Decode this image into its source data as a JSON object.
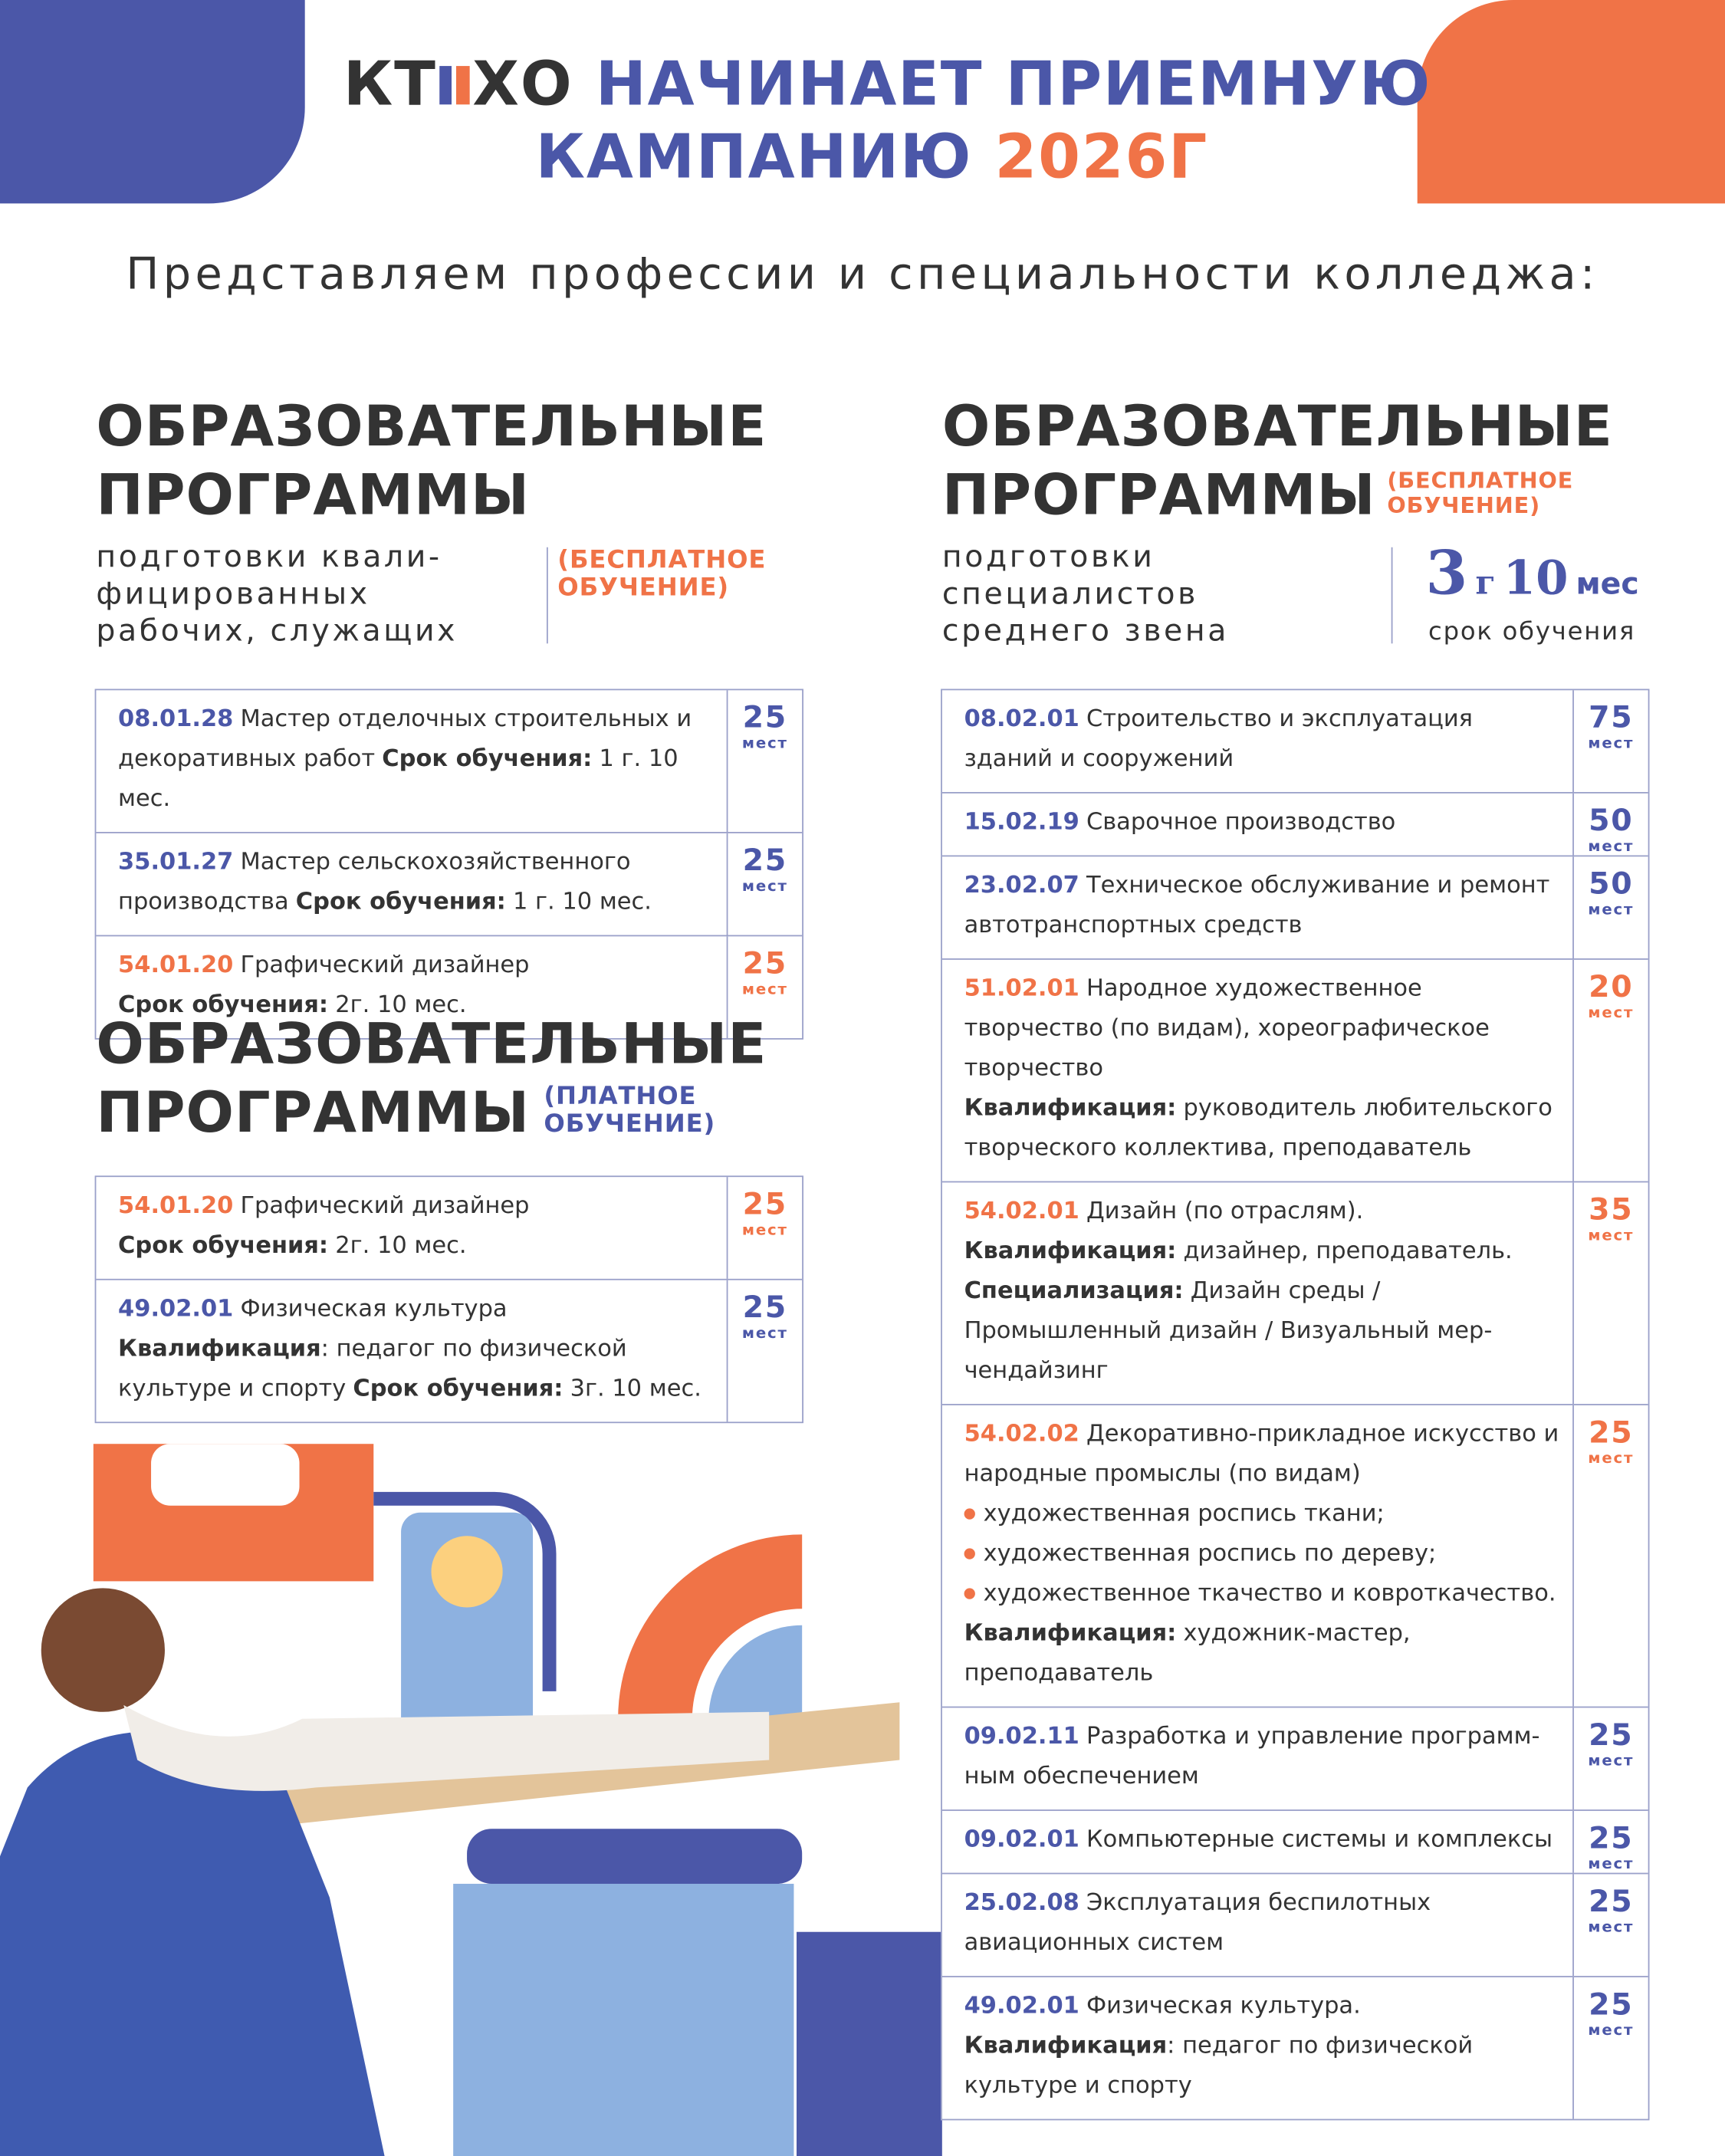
{
  "header": {
    "logo_left": "КТ",
    "logo_right": "ХО",
    "title_line_1": "НАЧИНАЕТ ПРИЕМНУЮ",
    "title_line_2": "КАМПАНИЮ",
    "year": "2026Г"
  },
  "intro": "Представляем профессии и специальности колледжа:",
  "seats_unit": "мест",
  "left_free": {
    "heading": [
      "ОБРАЗОВАТЕЛЬНЫЕ",
      "ПРОГРАММЫ"
    ],
    "subtitle": [
      "подготовки квали-",
      "фицированных",
      "рабочих, служащих"
    ],
    "tag": [
      "(БЕСПЛАТНОЕ",
      "ОБУЧЕНИЕ)"
    ],
    "rows": [
      {
        "code": "08.01.28",
        "color": "#4b57a8",
        "seats": 25,
        "paragraphs": [
          {
            "parts": [
              {
                "text": "Мастер отделочных строительных и декоративных работ",
                "bold": false
              },
              {
                "text": "Срок обучения:",
                "bold": true
              },
              {
                "text": "1 г. 10 мес.",
                "bold": false
              }
            ]
          }
        ]
      },
      {
        "code": "35.01.27",
        "color": "#4b57a8",
        "seats": 25,
        "paragraphs": [
          {
            "parts": [
              {
                "text": "Мастер сельскохозяйственного производства",
                "bold": false
              },
              {
                "text": "Срок обучения:",
                "bold": true
              },
              {
                "text": "1 г. 10 мес.",
                "bold": false
              }
            ]
          }
        ]
      },
      {
        "code": "54.01.20",
        "color": "#f07347",
        "seats": 25,
        "paragraphs": [
          {
            "parts": [
              {
                "text": "Графический дизайнер",
                "bold": false
              }
            ]
          },
          {
            "parts": [
              {
                "text": "Срок обучения:",
                "bold": true
              },
              {
                "text": "2г. 10 мес.",
                "bold": false
              }
            ]
          }
        ]
      }
    ]
  },
  "left_paid": {
    "heading": [
      "ОБРАЗОВАТЕЛЬНЫЕ",
      "ПРОГРАММЫ"
    ],
    "tag": [
      "(ПЛАТНОЕ",
      "ОБУЧЕНИЕ)"
    ],
    "rows": [
      {
        "code": "54.01.20",
        "color": "#f07347",
        "seats": 25,
        "paragraphs": [
          {
            "parts": [
              {
                "text": "Графический дизайнер",
                "bold": false
              }
            ]
          },
          {
            "parts": [
              {
                "text": "Срок обучения:",
                "bold": true
              },
              {
                "text": "2г. 10 мес.",
                "bold": false
              }
            ]
          }
        ]
      },
      {
        "code": "49.02.01",
        "color": "#4b57a8",
        "seats": 25,
        "paragraphs": [
          {
            "parts": [
              {
                "text": "Физическая культура",
                "bold": false
              }
            ]
          },
          {
            "parts": [
              {
                "text": "Квалификация",
                "bold": true
              },
              {
                "text": ": педагог по физической культуре и спорту",
                "bold": false
              },
              {
                "text": "Срок обучения:",
                "bold": true
              },
              {
                "text": "3г. 10 мес.",
                "bold": false
              }
            ]
          }
        ]
      }
    ]
  },
  "right": {
    "heading": [
      "ОБРАЗОВАТЕЛЬНЫЕ",
      "ПРОГРАММЫ"
    ],
    "tag": [
      "(БЕСПЛАТНОЕ",
      "ОБУЧЕНИЕ)"
    ],
    "subtitle": [
      "подготовки",
      "специалистов",
      "среднего звена"
    ],
    "duration": {
      "years": 3,
      "years_unit": "г",
      "months": 10,
      "months_unit": "мес",
      "label": "срок обучения"
    },
    "rows": [
      {
        "code": "08.02.01",
        "color": "#4b57a8",
        "seats": 75,
        "paragraphs": [
          {
            "parts": [
              {
                "text": "Строительство и эксплуатация зданий и сооружений",
                "bold": false
              }
            ]
          }
        ]
      },
      {
        "code": "15.02.19",
        "color": "#4b57a8",
        "seats": 50,
        "paragraphs": [
          {
            "parts": [
              {
                "text": "Сварочное производство",
                "bold": false
              }
            ]
          }
        ]
      },
      {
        "code": "23.02.07",
        "color": "#4b57a8",
        "seats": 50,
        "paragraphs": [
          {
            "parts": [
              {
                "text": "Техническое обслуживание и ремонт автотранспортных средств",
                "bold": false
              }
            ]
          }
        ]
      },
      {
        "code": "51.02.01",
        "color": "#f07347",
        "seats": 20,
        "paragraphs": [
          {
            "parts": [
              {
                "text": "Народное художественное творчество (по видам), хореографическое творчество",
                "bold": false
              }
            ]
          },
          {
            "parts": [
              {
                "text": "Квалификация:",
                "bold": true
              },
              {
                "text": "руководитель любительского творческого коллектива, преподаватель",
                "bold": false
              }
            ]
          }
        ]
      },
      {
        "code": "54.02.01",
        "color": "#f07347",
        "seats": 35,
        "paragraphs": [
          {
            "parts": [
              {
                "text": "Дизайн (по отраслям).",
                "bold": false
              }
            ]
          },
          {
            "parts": [
              {
                "text": "Квалификация:",
                "bold": true
              },
              {
                "text": "дизайнер, преподаватель.",
                "bold": false
              }
            ]
          },
          {
            "parts": [
              {
                "text": "Специализация:",
                "bold": true
              },
              {
                "text": "Дизайн среды / Промышленный дизайн / Визуальный мер-чендайзинг",
                "bold": false
              }
            ]
          }
        ]
      },
      {
        "code": "54.02.02",
        "color": "#f07347",
        "seats": 25,
        "paragraphs": [
          {
            "parts": [
              {
                "text": "Декоративно-прикладное искусство и народные промыслы (по видам)",
                "bold": false
              }
            ]
          },
          {
            "bullet": true,
            "parts": [
              {
                "text": "художественная роспись ткани;",
                "bold": false
              }
            ]
          },
          {
            "bullet": true,
            "parts": [
              {
                "text": "художественная роспись по дереву;",
                "bold": false
              }
            ]
          },
          {
            "bullet": true,
            "parts": [
              {
                "text": "художественное ткачество и ковроткачество.",
                "bold": false
              }
            ]
          },
          {
            "parts": [
              {
                "text": "Квалификация:",
                "bold": true
              },
              {
                "text": "художник-мастер, преподаватель",
                "bold": false
              }
            ]
          }
        ]
      },
      {
        "code": "09.02.11",
        "color": "#4b57a8",
        "seats": 25,
        "paragraphs": [
          {
            "parts": [
              {
                "text": "Разработка и управление программ-ным обеспечением",
                "bold": false
              }
            ]
          }
        ]
      },
      {
        "code": "09.02.01",
        "color": "#4b57a8",
        "seats": 25,
        "paragraphs": [
          {
            "parts": [
              {
                "text": "Компьютерные системы и комплексы",
                "bold": false
              }
            ]
          }
        ]
      },
      {
        "code": "25.02.08",
        "color": "#4b57a8",
        "seats": 25,
        "paragraphs": [
          {
            "parts": [
              {
                "text": "Эксплуатация беспилотных авиационных систем",
                "bold": false
              }
            ]
          }
        ]
      },
      {
        "code": "49.02.01",
        "color": "#4b57a8",
        "seats": 25,
        "paragraphs": [
          {
            "parts": [
              {
                "text": "Физическая культура.",
                "bold": false
              }
            ]
          },
          {
            "parts": [
              {
                "text": "Квалификация",
                "bold": true
              },
              {
                "text": ": педагог по физической культуре и спорту",
                "bold": false
              }
            ]
          }
        ]
      }
    ]
  }
}
